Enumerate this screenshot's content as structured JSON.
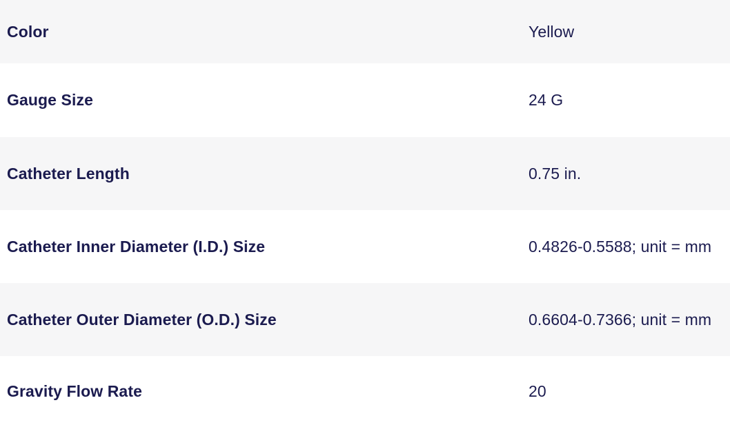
{
  "colors": {
    "text_navy": "#1b1b4f",
    "row_alt_bg": "#f6f6f7",
    "row_bg": "#ffffff"
  },
  "table": {
    "rows": [
      {
        "label": "Color",
        "value": "Yellow"
      },
      {
        "label": "Gauge Size",
        "value": "24 G"
      },
      {
        "label": "Catheter Length",
        "value": "0.75 in."
      },
      {
        "label": "Catheter Inner Diameter (I.D.) Size",
        "value": "0.4826-0.5588; unit = mm"
      },
      {
        "label": "Catheter Outer Diameter (O.D.) Size",
        "value": "0.6604-0.7366; unit = mm"
      },
      {
        "label": "Gravity Flow Rate",
        "value": "20"
      }
    ]
  }
}
